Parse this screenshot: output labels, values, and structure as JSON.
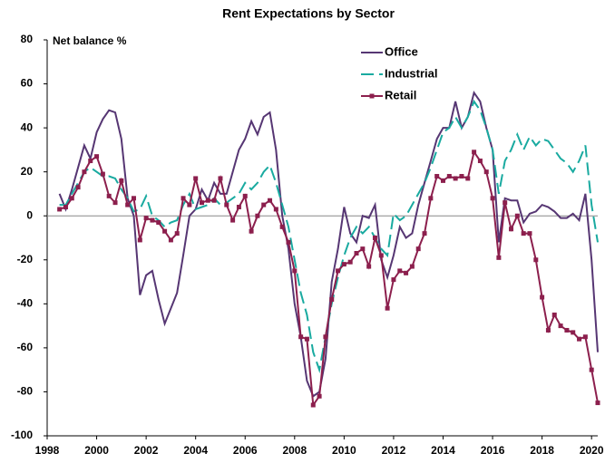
{
  "chart_data": {
    "type": "line",
    "title": "Rent Expectations by Sector",
    "y_label": "Net balance %",
    "x": [
      1998.5,
      1998.75,
      1999,
      1999.25,
      1999.5,
      1999.75,
      2000,
      2000.25,
      2000.5,
      2000.75,
      2001,
      2001.25,
      2001.5,
      2001.75,
      2002,
      2002.25,
      2002.5,
      2002.75,
      2003,
      2003.25,
      2003.5,
      2003.75,
      2004,
      2004.25,
      2004.5,
      2004.75,
      2005,
      2005.25,
      2005.5,
      2005.75,
      2006,
      2006.25,
      2006.5,
      2006.75,
      2007,
      2007.25,
      2007.5,
      2007.75,
      2008,
      2008.25,
      2008.5,
      2008.75,
      2009,
      2009.25,
      2009.5,
      2009.75,
      2010,
      2010.25,
      2010.5,
      2010.75,
      2011,
      2011.25,
      2011.5,
      2011.75,
      2012,
      2012.25,
      2012.5,
      2012.75,
      2013,
      2013.25,
      2013.5,
      2013.75,
      2014,
      2014.25,
      2014.5,
      2014.75,
      2015,
      2015.25,
      2015.5,
      2015.75,
      2016,
      2016.25,
      2016.5,
      2016.75,
      2017,
      2017.25,
      2017.5,
      2017.75,
      2018,
      2018.25,
      2018.5,
      2018.75,
      2019,
      2019.25,
      2019.5,
      2019.75,
      2020,
      2020.25
    ],
    "series": [
      {
        "name": "Office",
        "color": "#563673",
        "dashed": false,
        "markers": false,
        "values": [
          10,
          3,
          12,
          22,
          32,
          26,
          38,
          44,
          48,
          47,
          35,
          8,
          0,
          -36,
          -27,
          -25,
          -38,
          -49,
          -42,
          -35,
          -18,
          0,
          3,
          12,
          7,
          15,
          10,
          10,
          20,
          30,
          35,
          43,
          37,
          45,
          47,
          30,
          0,
          -15,
          -40,
          -55,
          -75,
          -82,
          -80,
          -65,
          -30,
          -15,
          4,
          -8,
          -12,
          0,
          -1,
          5,
          -20,
          -28,
          -18,
          -5,
          -10,
          -8,
          5,
          15,
          25,
          35,
          40,
          40,
          52,
          40,
          45,
          56,
          52,
          40,
          30,
          -12,
          8,
          7,
          7,
          -3,
          1,
          2,
          5,
          4,
          2,
          -1,
          -1,
          1,
          -2,
          10,
          -20,
          -62
        ]
      },
      {
        "name": "Industrial",
        "color": "#19aaa0",
        "dashed": true,
        "markers": false,
        "values": [
          5,
          5,
          10,
          15,
          20,
          22,
          20,
          18,
          18,
          17,
          12,
          8,
          2,
          3,
          9,
          0,
          -2,
          -5,
          -3,
          -2,
          5,
          10,
          3,
          4,
          5,
          8,
          5,
          6,
          8,
          10,
          15,
          12,
          15,
          20,
          23,
          15,
          5,
          -5,
          -20,
          -35,
          -45,
          -62,
          -70,
          -55,
          -40,
          -28,
          -18,
          -10,
          -5,
          -8,
          -5,
          -10,
          -15,
          -18,
          1,
          -2,
          0,
          5,
          10,
          15,
          22,
          30,
          38,
          40,
          45,
          40,
          45,
          52,
          48,
          40,
          30,
          10,
          25,
          30,
          37,
          30,
          36,
          32,
          35,
          34,
          30,
          26,
          24,
          20,
          25,
          32,
          5,
          -12
        ]
      },
      {
        "name": "Retail",
        "color": "#8c1f4d",
        "dashed": false,
        "markers": true,
        "values": [
          3,
          4,
          8,
          13,
          20,
          25,
          27,
          19,
          9,
          6,
          16,
          5,
          8,
          -11,
          -1,
          -2,
          -3,
          -7,
          -11,
          -8,
          8,
          5,
          17,
          6,
          7,
          7,
          17,
          5,
          -2,
          4,
          9,
          -7,
          0,
          5,
          7,
          3,
          -5,
          -12,
          -25,
          -55,
          -56,
          -86,
          -82,
          -55,
          -38,
          -25,
          -22,
          -21,
          -17,
          -15,
          -23,
          -10,
          -18,
          -42,
          -29,
          -25,
          -26,
          -23,
          -15,
          -8,
          8,
          18,
          16,
          18,
          17,
          18,
          17,
          29,
          25,
          20,
          8,
          -19,
          6,
          -6,
          0,
          -8,
          -8,
          -20,
          -37,
          -52,
          -45,
          -50,
          -52,
          -53,
          -56,
          -55,
          -70,
          -85
        ]
      }
    ],
    "xlim": [
      1998,
      2020.25
    ],
    "xticks": [
      1998,
      2000,
      2002,
      2004,
      2006,
      2008,
      2010,
      2012,
      2014,
      2016,
      2018,
      2020
    ],
    "ylim": [
      -100,
      80
    ],
    "yticks": [
      -100,
      -80,
      -60,
      -40,
      -20,
      0,
      20,
      40,
      60,
      80
    ],
    "grid": false,
    "legend": "top-right"
  }
}
